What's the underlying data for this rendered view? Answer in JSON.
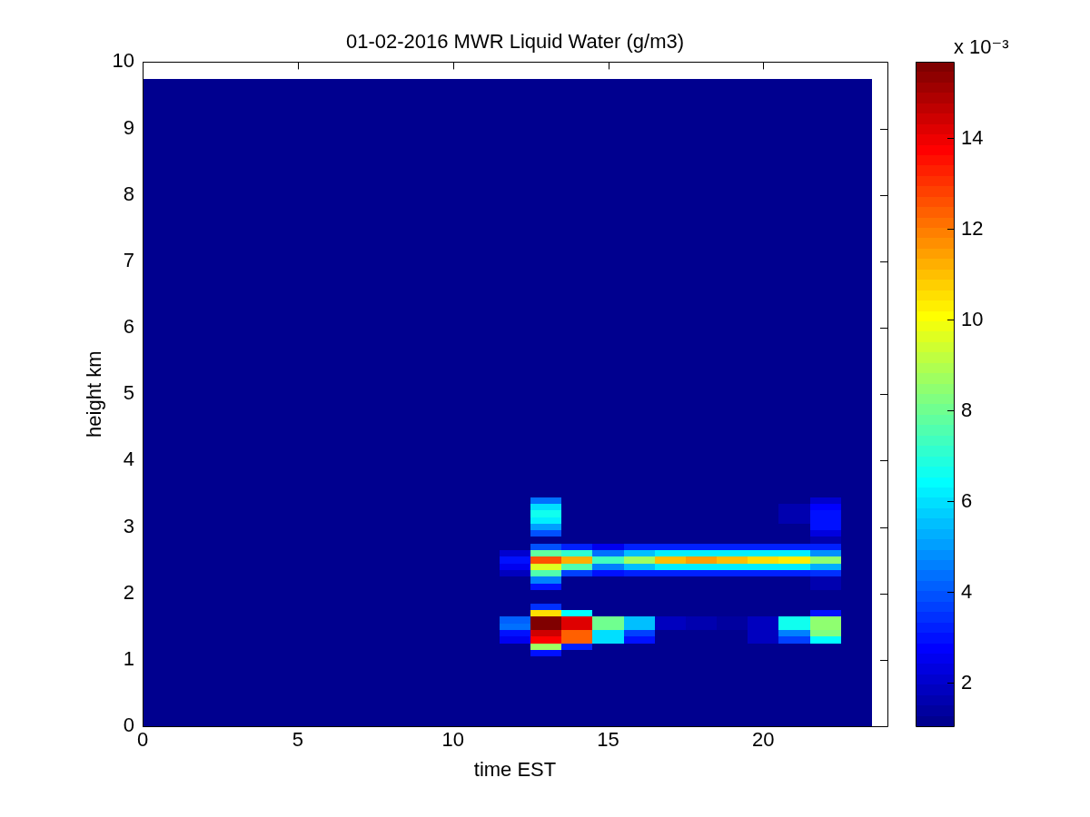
{
  "chart_data": {
    "type": "heatmap",
    "title": "01-02-2016 MWR Liquid Water (g/m3)",
    "xlabel": "time EST",
    "ylabel": "height km",
    "clabel": "x 10⁻³",
    "xlim": [
      0,
      24
    ],
    "xticks": [
      0,
      5,
      10,
      15,
      20
    ],
    "ylim": [
      0,
      10
    ],
    "yticks": [
      0,
      1,
      2,
      3,
      4,
      5,
      6,
      7,
      8,
      9,
      10
    ],
    "clim": [
      1.04,
      15.68
    ],
    "cticks": [
      2,
      4,
      6,
      8,
      10,
      12,
      14
    ],
    "x": [
      0.25,
      1,
      2,
      3,
      4,
      5,
      6,
      7,
      8,
      9,
      10,
      11,
      12,
      13,
      14,
      15,
      16,
      17,
      18,
      19,
      20,
      21,
      22,
      23
    ],
    "y": [
      9.7,
      9.6,
      9.5,
      9.4,
      9.3,
      9.2,
      9.1,
      9,
      8.9,
      8.8,
      8.7,
      8.6,
      8.5,
      8.4,
      8.3,
      8.2,
      8.1,
      8,
      7.9,
      7.8,
      7.7,
      7.6,
      7.5,
      7.4,
      7.3,
      7.2,
      7.1,
      7,
      6.9,
      6.8,
      6.7,
      6.6,
      6.5,
      6.4,
      6.3,
      6.2,
      6.1,
      6,
      5.9,
      5.8,
      5.7,
      5.6,
      5.5,
      5.4,
      5.3,
      5.2,
      5.1,
      5,
      4.9,
      4.8,
      4.7,
      4.6,
      4.5,
      4.4,
      4.3,
      4.2,
      4.1,
      4,
      3.9,
      3.8,
      3.7,
      3.6,
      3.5,
      3.4,
      3.3,
      3.2,
      3.1,
      3,
      2.9,
      2.8,
      2.7,
      2.6,
      2.5,
      2.4,
      2.3,
      2.2,
      2.1,
      2,
      1.9,
      1.8,
      1.7,
      1.6,
      1.5,
      1.4,
      1.3,
      1.2,
      1.1,
      1,
      0.9,
      0.8,
      0.7,
      0.6,
      0.5,
      0.4,
      0.3,
      0.2,
      0.1,
      0.025
    ],
    "cells": [
      [
        1.1,
        1.1,
        1.1,
        1.1,
        1.1,
        1.1,
        1.1,
        1.1,
        1.1,
        1.1,
        1.1,
        1.1,
        1.1,
        1.1,
        1.1,
        1.1,
        1.1,
        1.1,
        1.1,
        1.1,
        1.1,
        1.1,
        1.1,
        1.1
      ],
      [
        1.1,
        1.1,
        1.1,
        1.1,
        1.1,
        1.1,
        1.1,
        1.1,
        1.1,
        1.1,
        1.1,
        1.1,
        1.1,
        1.1,
        1.1,
        1.1,
        1.1,
        1.1,
        1.1,
        1.1,
        1.1,
        1.1,
        1.1,
        1.1
      ],
      [
        1.1,
        1.1,
        1.1,
        1.1,
        1.1,
        1.1,
        1.1,
        1.1,
        1.1,
        1.1,
        1.1,
        1.1,
        1.1,
        1.1,
        1.1,
        1.1,
        1.1,
        1.1,
        1.1,
        1.1,
        1.1,
        1.1,
        1.1,
        1.1
      ],
      [
        1.1,
        1.1,
        1.1,
        1.1,
        1.1,
        1.1,
        1.1,
        1.1,
        1.1,
        1.1,
        1.1,
        1.1,
        1.1,
        1.1,
        1.1,
        1.1,
        1.1,
        1.1,
        1.1,
        1.1,
        1.1,
        1.1,
        1.1,
        1.1
      ],
      [
        1.1,
        1.1,
        1.1,
        1.1,
        1.1,
        1.1,
        1.1,
        1.1,
        1.1,
        1.1,
        1.1,
        1.1,
        1.1,
        1.1,
        1.1,
        1.1,
        1.1,
        1.1,
        1.1,
        1.1,
        1.1,
        1.1,
        1.1,
        1.1
      ],
      [
        1.1,
        1.1,
        1.1,
        1.1,
        1.1,
        1.1,
        1.1,
        1.1,
        1.1,
        1.1,
        1.1,
        1.1,
        1.1,
        1.1,
        1.1,
        1.1,
        1.1,
        1.1,
        1.1,
        1.1,
        1.1,
        1.1,
        1.1,
        1.1
      ],
      [
        1.1,
        1.1,
        1.1,
        1.1,
        1.1,
        1.1,
        1.1,
        1.1,
        1.1,
        1.1,
        1.1,
        1.1,
        1.1,
        1.1,
        1.1,
        1.1,
        1.1,
        1.1,
        1.1,
        1.1,
        1.1,
        1.1,
        1.1,
        1.1
      ],
      [
        1.1,
        1.1,
        1.1,
        1.1,
        1.1,
        1.1,
        1.1,
        1.1,
        1.1,
        1.1,
        1.1,
        1.1,
        1.1,
        1.1,
        1.1,
        1.1,
        1.1,
        1.1,
        1.1,
        1.1,
        1.1,
        1.1,
        1.1,
        1.1
      ],
      [
        1.1,
        1.1,
        1.1,
        1.1,
        1.1,
        1.1,
        1.1,
        1.1,
        1.1,
        1.1,
        1.1,
        1.1,
        1.1,
        1.1,
        1.1,
        1.1,
        1.1,
        1.1,
        1.1,
        1.1,
        1.1,
        1.1,
        1.1,
        1.1
      ],
      [
        1.1,
        1.1,
        1.1,
        1.1,
        1.1,
        1.1,
        1.1,
        1.1,
        1.1,
        1.1,
        1.1,
        1.1,
        1.1,
        1.1,
        1.1,
        1.1,
        1.1,
        1.1,
        1.1,
        1.1,
        1.1,
        1.1,
        1.1,
        1.1
      ],
      [
        1.1,
        1.1,
        1.1,
        1.1,
        1.1,
        1.1,
        1.1,
        1.1,
        1.1,
        1.1,
        1.1,
        1.1,
        1.1,
        1.1,
        1.1,
        1.1,
        1.1,
        1.1,
        1.1,
        1.1,
        1.1,
        1.1,
        1.1,
        1.1
      ],
      [
        1.1,
        1.1,
        1.1,
        1.1,
        1.1,
        1.1,
        1.1,
        1.1,
        1.1,
        1.1,
        1.1,
        1.1,
        1.1,
        1.1,
        1.1,
        1.1,
        1.1,
        1.1,
        1.1,
        1.1,
        1.1,
        1.1,
        1.1,
        1.1
      ],
      [
        1.1,
        1.1,
        1.1,
        1.1,
        1.1,
        1.1,
        1.1,
        1.1,
        1.1,
        1.1,
        1.1,
        1.1,
        1.1,
        1.1,
        1.1,
        1.1,
        1.1,
        1.1,
        1.1,
        1.1,
        1.1,
        1.1,
        1.1,
        1.1
      ],
      [
        1.1,
        1.1,
        1.1,
        1.1,
        1.1,
        1.1,
        1.1,
        1.1,
        1.1,
        1.1,
        1.1,
        1.1,
        1.1,
        1.1,
        1.1,
        1.1,
        1.1,
        1.1,
        1.1,
        1.1,
        1.1,
        1.1,
        1.1,
        1.1
      ],
      [
        1.1,
        1.1,
        1.1,
        1.1,
        1.1,
        1.1,
        1.1,
        1.1,
        1.1,
        1.1,
        1.1,
        1.1,
        1.1,
        1.1,
        1.1,
        1.1,
        1.1,
        1.1,
        1.1,
        1.1,
        1.1,
        1.1,
        1.1,
        1.1
      ],
      [
        1.1,
        1.1,
        1.1,
        1.1,
        1.1,
        1.1,
        1.1,
        1.1,
        1.1,
        1.1,
        1.1,
        1.1,
        1.1,
        1.1,
        1.1,
        1.1,
        1.1,
        1.1,
        1.1,
        1.1,
        1.1,
        1.1,
        1.1,
        1.1
      ],
      [
        1.1,
        1.1,
        1.1,
        1.1,
        1.1,
        1.1,
        1.1,
        1.1,
        1.1,
        1.1,
        1.1,
        1.1,
        1.1,
        1.1,
        1.1,
        1.1,
        1.1,
        1.1,
        1.1,
        1.1,
        1.1,
        1.1,
        1.1,
        1.1
      ],
      [
        1.1,
        1.1,
        1.1,
        1.1,
        1.1,
        1.1,
        1.1,
        1.1,
        1.1,
        1.1,
        1.1,
        1.1,
        1.1,
        1.1,
        1.1,
        1.1,
        1.1,
        1.1,
        1.1,
        1.1,
        1.1,
        1.1,
        1.1,
        1.1
      ],
      [
        1.1,
        1.1,
        1.1,
        1.1,
        1.1,
        1.1,
        1.1,
        1.1,
        1.1,
        1.1,
        1.1,
        1.1,
        1.1,
        1.1,
        1.1,
        1.1,
        1.1,
        1.1,
        1.1,
        1.1,
        1.1,
        1.1,
        1.1,
        1.1
      ],
      [
        1.1,
        1.1,
        1.1,
        1.1,
        1.1,
        1.1,
        1.1,
        1.1,
        1.1,
        1.1,
        1.1,
        1.1,
        1.1,
        1.1,
        1.1,
        1.1,
        1.1,
        1.1,
        1.1,
        1.1,
        1.1,
        1.1,
        1.1,
        1.1
      ],
      [
        1.1,
        1.1,
        1.1,
        1.1,
        1.1,
        1.1,
        1.1,
        1.1,
        1.1,
        1.1,
        1.1,
        1.1,
        1.1,
        1.1,
        1.1,
        1.1,
        1.1,
        1.1,
        1.1,
        1.1,
        1.1,
        1.1,
        1.1,
        1.1
      ],
      [
        1.1,
        1.1,
        1.1,
        1.1,
        1.1,
        1.1,
        1.1,
        1.1,
        1.1,
        1.1,
        1.1,
        1.1,
        1.1,
        1.1,
        1.1,
        1.1,
        1.1,
        1.1,
        1.1,
        1.1,
        1.1,
        1.1,
        1.1,
        1.1
      ],
      [
        1.1,
        1.1,
        1.1,
        1.1,
        1.1,
        1.1,
        1.1,
        1.1,
        1.1,
        1.1,
        1.1,
        1.1,
        1.1,
        1.1,
        1.1,
        1.1,
        1.1,
        1.1,
        1.1,
        1.1,
        1.1,
        1.1,
        1.1,
        1.1
      ],
      [
        1.1,
        1.1,
        1.1,
        1.1,
        1.1,
        1.1,
        1.1,
        1.1,
        1.1,
        1.1,
        1.1,
        1.1,
        1.1,
        1.1,
        1.1,
        1.1,
        1.1,
        1.1,
        1.1,
        1.1,
        1.1,
        1.1,
        1.1,
        1.1
      ],
      [
        1.1,
        1.1,
        1.1,
        1.1,
        1.1,
        1.1,
        1.1,
        1.1,
        1.1,
        1.1,
        1.1,
        1.1,
        1.1,
        1.1,
        1.1,
        1.1,
        1.1,
        1.1,
        1.1,
        1.1,
        1.1,
        1.1,
        1.1,
        1.1
      ],
      [
        1.1,
        1.1,
        1.1,
        1.1,
        1.1,
        1.1,
        1.1,
        1.1,
        1.1,
        1.1,
        1.1,
        1.1,
        1.1,
        1.1,
        1.1,
        1.1,
        1.1,
        1.1,
        1.1,
        1.1,
        1.1,
        1.1,
        1.1,
        1.1
      ],
      [
        1.1,
        1.1,
        1.1,
        1.1,
        1.1,
        1.1,
        1.1,
        1.1,
        1.1,
        1.1,
        1.1,
        1.1,
        1.1,
        1.1,
        1.1,
        1.1,
        1.1,
        1.1,
        1.1,
        1.1,
        1.1,
        1.1,
        1.1,
        1.1
      ],
      [
        1.1,
        1.1,
        1.1,
        1.1,
        1.1,
        1.1,
        1.1,
        1.1,
        1.1,
        1.1,
        1.1,
        1.1,
        1.1,
        1.1,
        1.1,
        1.1,
        1.1,
        1.1,
        1.1,
        1.1,
        1.1,
        1.1,
        1.1,
        1.1
      ],
      [
        1.1,
        1.1,
        1.1,
        1.1,
        1.1,
        1.1,
        1.1,
        1.1,
        1.1,
        1.1,
        1.1,
        1.1,
        1.1,
        1.1,
        1.1,
        1.1,
        1.1,
        1.1,
        1.1,
        1.1,
        1.1,
        1.1,
        1.1,
        1.1
      ],
      [
        1.1,
        1.1,
        1.1,
        1.1,
        1.1,
        1.1,
        1.1,
        1.1,
        1.1,
        1.1,
        1.1,
        1.1,
        1.1,
        1.1,
        1.1,
        1.1,
        1.1,
        1.1,
        1.1,
        1.1,
        1.1,
        1.1,
        1.1,
        1.1
      ],
      [
        1.1,
        1.1,
        1.1,
        1.1,
        1.1,
        1.1,
        1.1,
        1.1,
        1.1,
        1.1,
        1.1,
        1.1,
        1.1,
        1.1,
        1.1,
        1.1,
        1.1,
        1.1,
        1.1,
        1.1,
        1.1,
        1.1,
        1.1,
        1.1
      ],
      [
        1.1,
        1.1,
        1.1,
        1.1,
        1.1,
        1.1,
        1.1,
        1.1,
        1.1,
        1.1,
        1.1,
        1.1,
        1.1,
        1.1,
        1.1,
        1.1,
        1.1,
        1.1,
        1.1,
        1.1,
        1.1,
        1.1,
        1.1,
        1.1
      ],
      [
        1.1,
        1.1,
        1.1,
        1.1,
        1.1,
        1.1,
        1.1,
        1.1,
        1.1,
        1.1,
        1.1,
        1.1,
        1.1,
        1.1,
        1.1,
        1.1,
        1.1,
        1.1,
        1.1,
        1.1,
        1.1,
        1.1,
        1.1,
        1.1
      ],
      [
        1.1,
        1.1,
        1.1,
        1.1,
        1.1,
        1.1,
        1.1,
        1.1,
        1.1,
        1.1,
        1.1,
        1.1,
        1.1,
        1.1,
        1.1,
        1.1,
        1.1,
        1.1,
        1.1,
        1.1,
        1.1,
        1.1,
        1.1,
        1.1
      ],
      [
        1.1,
        1.1,
        1.1,
        1.1,
        1.1,
        1.1,
        1.1,
        1.1,
        1.1,
        1.1,
        1.1,
        1.1,
        1.1,
        1.1,
        1.1,
        1.1,
        1.1,
        1.1,
        1.1,
        1.1,
        1.1,
        1.1,
        1.1,
        1.1
      ],
      [
        1.1,
        1.1,
        1.1,
        1.1,
        1.1,
        1.1,
        1.1,
        1.1,
        1.1,
        1.1,
        1.1,
        1.1,
        1.1,
        1.1,
        1.1,
        1.1,
        1.1,
        1.1,
        1.1,
        1.1,
        1.1,
        1.1,
        1.1,
        1.1
      ],
      [
        1.1,
        1.1,
        1.1,
        1.1,
        1.1,
        1.1,
        1.1,
        1.1,
        1.1,
        1.1,
        1.1,
        1.1,
        1.1,
        1.1,
        1.1,
        1.1,
        1.1,
        1.1,
        1.1,
        1.1,
        1.1,
        1.1,
        1.1,
        1.1
      ],
      [
        1.1,
        1.1,
        1.1,
        1.1,
        1.1,
        1.1,
        1.1,
        1.1,
        1.1,
        1.1,
        1.1,
        1.1,
        1.1,
        1.1,
        1.1,
        1.1,
        1.1,
        1.1,
        1.1,
        1.1,
        1.1,
        1.1,
        1.1,
        1.1
      ],
      [
        1.1,
        1.1,
        1.1,
        1.1,
        1.1,
        1.1,
        1.1,
        1.1,
        1.1,
        1.1,
        1.1,
        1.1,
        1.1,
        1.1,
        1.1,
        1.1,
        1.1,
        1.1,
        1.1,
        1.1,
        1.1,
        1.1,
        1.1,
        1.1
      ],
      [
        1.1,
        1.1,
        1.1,
        1.1,
        1.1,
        1.1,
        1.1,
        1.1,
        1.1,
        1.1,
        1.1,
        1.1,
        1.1,
        1.1,
        1.1,
        1.1,
        1.1,
        1.1,
        1.1,
        1.1,
        1.1,
        1.1,
        1.1,
        1.1
      ],
      [
        1.1,
        1.1,
        1.1,
        1.1,
        1.1,
        1.1,
        1.1,
        1.1,
        1.1,
        1.1,
        1.1,
        1.1,
        1.1,
        1.1,
        1.1,
        1.1,
        1.1,
        1.1,
        1.1,
        1.1,
        1.1,
        1.1,
        1.1,
        1.1
      ],
      [
        1.1,
        1.1,
        1.1,
        1.1,
        1.1,
        1.1,
        1.1,
        1.1,
        1.1,
        1.1,
        1.1,
        1.1,
        1.1,
        1.1,
        1.1,
        1.1,
        1.1,
        1.1,
        1.1,
        1.1,
        1.1,
        1.1,
        1.1,
        1.1
      ],
      [
        1.1,
        1.1,
        1.1,
        1.1,
        1.1,
        1.1,
        1.1,
        1.1,
        1.1,
        1.1,
        1.1,
        1.1,
        1.1,
        1.1,
        1.1,
        1.1,
        1.1,
        1.1,
        1.1,
        1.1,
        1.1,
        1.1,
        1.1,
        1.1
      ],
      [
        1.1,
        1.1,
        1.1,
        1.1,
        1.1,
        1.1,
        1.1,
        1.1,
        1.1,
        1.1,
        1.1,
        1.1,
        1.1,
        1.1,
        1.1,
        1.1,
        1.1,
        1.1,
        1.1,
        1.1,
        1.1,
        1.1,
        1.1,
        1.1
      ],
      [
        1.1,
        1.1,
        1.1,
        1.1,
        1.1,
        1.1,
        1.1,
        1.1,
        1.1,
        1.1,
        1.1,
        1.1,
        1.1,
        1.1,
        1.1,
        1.1,
        1.1,
        1.1,
        1.1,
        1.1,
        1.1,
        1.1,
        1.1,
        1.1
      ],
      [
        1.1,
        1.1,
        1.1,
        1.1,
        1.1,
        1.1,
        1.1,
        1.1,
        1.1,
        1.1,
        1.1,
        1.1,
        1.1,
        1.1,
        1.1,
        1.1,
        1.1,
        1.1,
        1.1,
        1.1,
        1.1,
        1.1,
        1.1,
        1.1
      ],
      [
        1.1,
        1.1,
        1.1,
        1.1,
        1.1,
        1.1,
        1.1,
        1.1,
        1.1,
        1.1,
        1.1,
        1.1,
        1.1,
        1.1,
        1.1,
        1.1,
        1.1,
        1.1,
        1.1,
        1.1,
        1.1,
        1.1,
        1.1,
        1.1
      ],
      [
        1.1,
        1.1,
        1.1,
        1.1,
        1.1,
        1.1,
        1.1,
        1.1,
        1.1,
        1.1,
        1.1,
        1.1,
        1.1,
        1.1,
        1.1,
        1.1,
        1.1,
        1.1,
        1.1,
        1.1,
        1.1,
        1.1,
        1.1,
        1.1
      ],
      [
        1.1,
        1.1,
        1.1,
        1.1,
        1.1,
        1.1,
        1.1,
        1.1,
        1.1,
        1.1,
        1.1,
        1.1,
        1.1,
        1.1,
        1.1,
        1.1,
        1.1,
        1.1,
        1.1,
        1.1,
        1.1,
        1.1,
        1.1,
        1.1
      ],
      [
        1.1,
        1.1,
        1.1,
        1.1,
        1.1,
        1.1,
        1.1,
        1.1,
        1.1,
        1.1,
        1.1,
        1.1,
        1.1,
        1.1,
        1.1,
        1.1,
        1.1,
        1.1,
        1.1,
        1.1,
        1.1,
        1.1,
        1.1,
        1.1
      ],
      [
        1.1,
        1.1,
        1.1,
        1.1,
        1.1,
        1.1,
        1.1,
        1.1,
        1.1,
        1.1,
        1.1,
        1.1,
        1.1,
        1.1,
        1.1,
        1.1,
        1.1,
        1.1,
        1.1,
        1.1,
        1.1,
        1.1,
        1.1,
        1.1
      ],
      [
        1.1,
        1.1,
        1.1,
        1.1,
        1.1,
        1.1,
        1.1,
        1.1,
        1.1,
        1.1,
        1.1,
        1.1,
        1.1,
        1.1,
        1.1,
        1.1,
        1.1,
        1.1,
        1.1,
        1.1,
        1.1,
        1.1,
        1.1,
        1.1
      ],
      [
        1.1,
        1.1,
        1.1,
        1.1,
        1.1,
        1.1,
        1.1,
        1.1,
        1.1,
        1.1,
        1.1,
        1.1,
        1.1,
        1.1,
        1.1,
        1.1,
        1.1,
        1.1,
        1.1,
        1.1,
        1.1,
        1.1,
        1.1,
        1.1
      ],
      [
        1.1,
        1.1,
        1.1,
        1.1,
        1.1,
        1.1,
        1.1,
        1.1,
        1.1,
        1.1,
        1.1,
        1.1,
        1.1,
        1.1,
        1.1,
        1.1,
        1.1,
        1.1,
        1.1,
        1.1,
        1.1,
        1.1,
        1.1,
        1.1
      ],
      [
        1.1,
        1.1,
        1.1,
        1.1,
        1.1,
        1.1,
        1.1,
        1.1,
        1.1,
        1.1,
        1.1,
        1.1,
        1.1,
        1.1,
        1.1,
        1.1,
        1.1,
        1.1,
        1.1,
        1.1,
        1.1,
        1.1,
        1.1,
        1.1
      ],
      [
        1.1,
        1.1,
        1.1,
        1.1,
        1.1,
        1.1,
        1.1,
        1.1,
        1.1,
        1.1,
        1.1,
        1.1,
        1.1,
        1.1,
        1.1,
        1.1,
        1.1,
        1.1,
        1.1,
        1.1,
        1.1,
        1.1,
        1.1,
        1.1
      ],
      [
        1.1,
        1.1,
        1.1,
        1.1,
        1.1,
        1.1,
        1.1,
        1.1,
        1.1,
        1.1,
        1.1,
        1.1,
        1.1,
        1.1,
        1.1,
        1.1,
        1.1,
        1.1,
        1.1,
        1.1,
        1.1,
        1.1,
        1.1,
        1.1
      ],
      [
        1.1,
        1.1,
        1.1,
        1.1,
        1.1,
        1.1,
        1.1,
        1.1,
        1.1,
        1.1,
        1.1,
        1.1,
        1.1,
        1.1,
        1.1,
        1.1,
        1.1,
        1.1,
        1.1,
        1.1,
        1.1,
        1.1,
        1.1,
        1.1
      ],
      [
        1.1,
        1.1,
        1.1,
        1.1,
        1.1,
        1.1,
        1.1,
        1.1,
        1.1,
        1.1,
        1.1,
        1.1,
        1.1,
        1.1,
        1.1,
        1.1,
        1.1,
        1.1,
        1.1,
        1.1,
        1.1,
        1.1,
        1.1,
        1.1
      ],
      [
        1.1,
        1.1,
        1.1,
        1.1,
        1.1,
        1.1,
        1.1,
        1.1,
        1.1,
        1.1,
        1.1,
        1.1,
        1.1,
        1.1,
        1.1,
        1.1,
        1.1,
        1.1,
        1.1,
        1.1,
        1.1,
        1.1,
        1.1,
        1.1
      ],
      [
        1.1,
        1.1,
        1.1,
        1.1,
        1.1,
        1.1,
        1.1,
        1.1,
        1.1,
        1.1,
        1.1,
        1.1,
        1.1,
        1.1,
        1.1,
        1.1,
        1.1,
        1.1,
        1.1,
        1.1,
        1.1,
        1.1,
        1.1,
        1.1
      ],
      [
        1.1,
        1.1,
        1.1,
        1.1,
        1.1,
        1.1,
        1.1,
        1.1,
        1.1,
        1.1,
        1.1,
        1.1,
        1.1,
        1.1,
        1.1,
        1.1,
        1.1,
        1.1,
        1.1,
        1.1,
        1.1,
        1.1,
        1.1,
        1.1
      ],
      [
        1.1,
        1.1,
        1.1,
        1.1,
        1.1,
        1.1,
        1.1,
        1.1,
        1.1,
        1.1,
        1.1,
        1.1,
        1.1,
        1.1,
        1.1,
        1.1,
        1.1,
        1.1,
        1.1,
        1.1,
        1.1,
        1.1,
        1.1,
        1.1
      ],
      [
        1.1,
        1.1,
        1.1,
        1.1,
        1.1,
        1.1,
        1.1,
        1.1,
        1.1,
        1.1,
        1.1,
        1.1,
        1.1,
        4.3,
        1.1,
        1.1,
        1.1,
        1.1,
        1.1,
        1.1,
        1.1,
        1.1,
        2.0,
        1.1
      ],
      [
        1.1,
        1.1,
        1.1,
        1.1,
        1.1,
        1.1,
        1.1,
        1.1,
        1.1,
        1.1,
        1.1,
        1.1,
        1.1,
        5.9,
        1.1,
        1.1,
        1.1,
        1.1,
        1.1,
        1.1,
        1.1,
        1.5,
        2.8,
        1.1
      ],
      [
        1.1,
        1.1,
        1.1,
        1.1,
        1.1,
        1.1,
        1.1,
        1.1,
        1.1,
        1.1,
        1.1,
        1.1,
        1.1,
        6.6,
        1.1,
        1.1,
        1.1,
        1.1,
        1.1,
        1.1,
        1.1,
        1.6,
        3.0,
        1.1
      ],
      [
        1.1,
        1.1,
        1.1,
        1.1,
        1.1,
        1.1,
        1.1,
        1.1,
        1.1,
        1.1,
        1.1,
        1.1,
        1.1,
        6.1,
        1.1,
        1.1,
        1.1,
        1.1,
        1.1,
        1.1,
        1.1,
        1.6,
        3.0,
        1.1
      ],
      [
        1.1,
        1.1,
        1.1,
        1.1,
        1.1,
        1.1,
        1.1,
        1.1,
        1.1,
        1.1,
        1.1,
        1.1,
        1.1,
        5.0,
        1.1,
        1.1,
        1.1,
        1.1,
        1.1,
        1.1,
        1.1,
        1.1,
        2.9,
        1.1
      ],
      [
        1.1,
        1.1,
        1.1,
        1.1,
        1.1,
        1.1,
        1.1,
        1.1,
        1.1,
        1.1,
        1.1,
        1.1,
        1.1,
        3.8,
        1.1,
        1.1,
        1.1,
        1.1,
        1.1,
        1.1,
        1.1,
        1.1,
        2.2,
        1.1
      ],
      [
        1.1,
        1.1,
        1.1,
        1.1,
        1.1,
        1.1,
        1.1,
        1.1,
        1.1,
        1.1,
        1.1,
        1.1,
        1.1,
        1.1,
        1.1,
        1.1,
        1.1,
        1.1,
        1.1,
        1.1,
        1.1,
        1.1,
        1.5,
        1.1
      ],
      [
        1.1,
        1.1,
        1.1,
        1.1,
        1.1,
        1.1,
        1.1,
        1.1,
        1.1,
        1.1,
        1.1,
        1.1,
        1.1,
        3.9,
        3.3,
        2.6,
        3.1,
        3.1,
        3.1,
        3.1,
        3.1,
        3.1,
        3.3,
        1.1
      ],
      [
        1.1,
        1.1,
        1.1,
        1.1,
        1.1,
        1.1,
        1.1,
        1.1,
        1.1,
        1.1,
        1.1,
        1.1,
        2.0,
        7.8,
        7.0,
        4.4,
        5.6,
        6.2,
        6.1,
        6.1,
        6.1,
        6.1,
        4.8,
        1.1
      ],
      [
        1.1,
        1.1,
        1.1,
        1.1,
        1.1,
        1.1,
        1.1,
        1.1,
        1.1,
        1.1,
        1.1,
        1.1,
        2.9,
        12.6,
        11.3,
        7.4,
        8.6,
        11.0,
        11.5,
        11.1,
        10.5,
        10.4,
        8.4,
        1.1
      ],
      [
        1.1,
        1.1,
        1.1,
        1.1,
        1.1,
        1.1,
        1.1,
        1.1,
        1.1,
        1.1,
        1.1,
        1.1,
        2.6,
        9.6,
        7.6,
        4.6,
        5.6,
        6.3,
        6.3,
        6.3,
        6.3,
        6.3,
        5.2,
        1.1
      ],
      [
        1.1,
        1.1,
        1.1,
        1.1,
        1.1,
        1.1,
        1.1,
        1.1,
        1.1,
        1.1,
        1.1,
        1.1,
        1.9,
        7.5,
        3.6,
        3.0,
        3.1,
        3.2,
        3.2,
        3.2,
        3.2,
        3.2,
        3.4,
        1.1
      ],
      [
        1.1,
        1.1,
        1.1,
        1.1,
        1.1,
        1.1,
        1.1,
        1.1,
        1.1,
        1.1,
        1.1,
        1.1,
        1.1,
        4.6,
        1.1,
        1.1,
        1.1,
        1.1,
        1.1,
        1.1,
        1.1,
        1.1,
        1.6,
        1.1
      ],
      [
        1.1,
        1.1,
        1.1,
        1.1,
        1.1,
        1.1,
        1.1,
        1.1,
        1.1,
        1.1,
        1.1,
        1.1,
        1.1,
        3.0,
        1.1,
        1.1,
        1.1,
        1.1,
        1.1,
        1.1,
        1.1,
        1.1,
        1.5,
        1.1
      ],
      [
        1.1,
        1.1,
        1.1,
        1.1,
        1.1,
        1.1,
        1.1,
        1.1,
        1.1,
        1.1,
        1.1,
        1.1,
        1.1,
        1.1,
        1.1,
        1.1,
        1.1,
        1.1,
        1.1,
        1.1,
        1.1,
        1.1,
        1.1,
        1.1
      ],
      [
        1.1,
        1.1,
        1.1,
        1.1,
        1.1,
        1.1,
        1.1,
        1.1,
        1.1,
        1.1,
        1.1,
        1.1,
        1.1,
        1.1,
        1.1,
        1.1,
        1.1,
        1.1,
        1.1,
        1.1,
        1.1,
        1.1,
        1.1,
        1.1
      ],
      [
        1.1,
        1.1,
        1.1,
        1.1,
        1.1,
        1.1,
        1.1,
        1.1,
        1.1,
        1.1,
        1.1,
        1.1,
        1.1,
        3.4,
        1.1,
        1.1,
        1.1,
        1.1,
        1.1,
        1.1,
        1.1,
        1.1,
        1.1,
        1.1
      ],
      [
        1.1,
        1.1,
        1.1,
        1.1,
        1.1,
        1.1,
        1.1,
        1.1,
        1.1,
        1.1,
        1.1,
        1.1,
        1.1,
        10.6,
        6.4,
        1.1,
        1.1,
        1.1,
        1.1,
        1.1,
        1.1,
        1.1,
        2.9,
        1.1
      ],
      [
        1.1,
        1.1,
        1.1,
        1.1,
        1.1,
        1.1,
        1.1,
        1.1,
        1.1,
        1.1,
        1.1,
        1.1,
        4.1,
        15.5,
        14.3,
        8.1,
        5.6,
        1.8,
        1.5,
        1.3,
        1.9,
        6.6,
        8.4,
        1.1
      ],
      [
        1.1,
        1.1,
        1.1,
        1.1,
        1.1,
        1.1,
        1.1,
        1.1,
        1.1,
        1.1,
        1.1,
        1.1,
        4.3,
        15.5,
        14.3,
        8.1,
        5.6,
        1.8,
        1.5,
        1.3,
        1.9,
        6.6,
        8.4,
        1.1
      ],
      [
        1.1,
        1.1,
        1.1,
        1.1,
        1.1,
        1.1,
        1.1,
        1.1,
        1.1,
        1.1,
        1.1,
        1.1,
        2.9,
        14.5,
        12.4,
        6.0,
        3.7,
        1.1,
        1.1,
        1.1,
        1.8,
        4.6,
        8.2,
        1.1
      ],
      [
        1.1,
        1.1,
        1.1,
        1.1,
        1.1,
        1.1,
        1.1,
        1.1,
        1.1,
        1.1,
        1.1,
        1.1,
        2.6,
        13.7,
        12.4,
        6.0,
        3.0,
        1.1,
        1.1,
        1.1,
        1.8,
        3.7,
        6.4,
        1.1
      ],
      [
        1.1,
        1.1,
        1.1,
        1.1,
        1.1,
        1.1,
        1.1,
        1.1,
        1.1,
        1.1,
        1.1,
        1.1,
        1.1,
        8.7,
        3.3,
        1.1,
        1.1,
        1.1,
        1.1,
        1.1,
        1.1,
        1.1,
        1.1,
        1.1
      ],
      [
        1.1,
        1.1,
        1.1,
        1.1,
        1.1,
        1.1,
        1.1,
        1.1,
        1.1,
        1.1,
        1.1,
        1.1,
        1.1,
        3.0,
        1.1,
        1.1,
        1.1,
        1.1,
        1.1,
        1.1,
        1.1,
        1.1,
        1.1,
        1.1
      ],
      [
        1.1,
        1.1,
        1.1,
        1.1,
        1.1,
        1.1,
        1.1,
        1.1,
        1.1,
        1.1,
        1.1,
        1.1,
        1.1,
        1.1,
        1.1,
        1.1,
        1.1,
        1.1,
        1.1,
        1.1,
        1.1,
        1.1,
        1.1,
        1.1
      ],
      [
        1.1,
        1.1,
        1.1,
        1.1,
        1.1,
        1.1,
        1.1,
        1.1,
        1.1,
        1.1,
        1.1,
        1.1,
        1.1,
        1.1,
        1.1,
        1.1,
        1.1,
        1.1,
        1.1,
        1.1,
        1.1,
        1.1,
        1.1,
        1.1
      ],
      [
        1.1,
        1.1,
        1.1,
        1.1,
        1.1,
        1.1,
        1.1,
        1.1,
        1.1,
        1.1,
        1.1,
        1.1,
        1.1,
        1.1,
        1.1,
        1.1,
        1.1,
        1.1,
        1.1,
        1.1,
        1.1,
        1.1,
        1.1,
        1.1
      ],
      [
        1.1,
        1.1,
        1.1,
        1.1,
        1.1,
        1.1,
        1.1,
        1.1,
        1.1,
        1.1,
        1.1,
        1.1,
        1.1,
        1.1,
        1.1,
        1.1,
        1.1,
        1.1,
        1.1,
        1.1,
        1.1,
        1.1,
        1.1,
        1.1
      ],
      [
        1.1,
        1.1,
        1.1,
        1.1,
        1.1,
        1.1,
        1.1,
        1.1,
        1.1,
        1.1,
        1.1,
        1.1,
        1.1,
        1.1,
        1.1,
        1.1,
        1.1,
        1.1,
        1.1,
        1.1,
        1.1,
        1.1,
        1.1,
        1.1
      ],
      [
        1.1,
        1.1,
        1.1,
        1.1,
        1.1,
        1.1,
        1.1,
        1.1,
        1.1,
        1.1,
        1.1,
        1.1,
        1.1,
        1.1,
        1.1,
        1.1,
        1.1,
        1.1,
        1.1,
        1.1,
        1.1,
        1.1,
        1.1,
        1.1
      ],
      [
        1.1,
        1.1,
        1.1,
        1.1,
        1.1,
        1.1,
        1.1,
        1.1,
        1.1,
        1.1,
        1.1,
        1.1,
        1.1,
        1.1,
        1.1,
        1.1,
        1.1,
        1.1,
        1.1,
        1.1,
        1.1,
        1.1,
        1.1,
        1.1
      ],
      [
        1.1,
        1.1,
        1.1,
        1.1,
        1.1,
        1.1,
        1.1,
        1.1,
        1.1,
        1.1,
        1.1,
        1.1,
        1.1,
        1.1,
        1.1,
        1.1,
        1.1,
        1.1,
        1.1,
        1.1,
        1.1,
        1.1,
        1.1,
        1.1
      ],
      [
        1.1,
        1.1,
        1.1,
        1.1,
        1.1,
        1.1,
        1.1,
        1.1,
        1.1,
        1.1,
        1.1,
        1.1,
        1.1,
        1.1,
        1.1,
        1.1,
        1.1,
        1.1,
        1.1,
        1.1,
        1.1,
        1.1,
        1.1,
        1.1
      ],
      [
        1.1,
        1.1,
        1.1,
        1.1,
        1.1,
        1.1,
        1.1,
        1.1,
        1.1,
        1.1,
        1.1,
        1.1,
        1.1,
        1.1,
        1.1,
        1.1,
        1.1,
        1.1,
        1.1,
        1.1,
        1.1,
        1.1,
        1.1,
        1.1
      ],
      [
        1.1,
        1.1,
        1.1,
        1.1,
        1.1,
        1.1,
        1.1,
        1.1,
        1.1,
        1.1,
        1.1,
        1.1,
        1.1,
        1.1,
        1.1,
        1.1,
        1.1,
        1.1,
        1.1,
        1.1,
        1.1,
        1.1,
        1.1,
        1.1
      ]
    ]
  }
}
